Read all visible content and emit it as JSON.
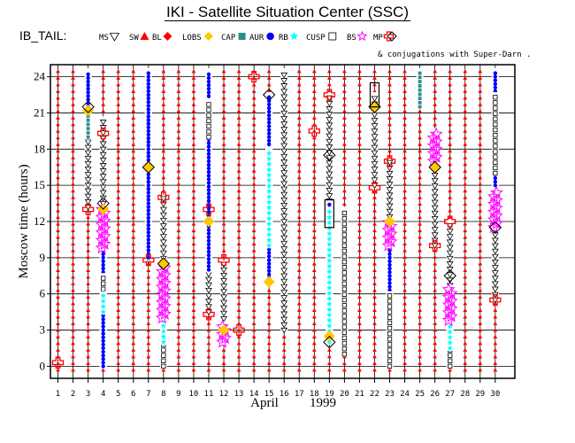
{
  "header": {
    "title": "IKI - Satellite Situation Center (SSC)"
  },
  "legend": {
    "prefix": "IB_TAIL:",
    "items": [
      {
        "label": "MS",
        "shape": "tri-down",
        "color": "#000000"
      },
      {
        "label": "SW",
        "shape": "tri-up",
        "color": "#ff0000"
      },
      {
        "label": "BL",
        "shape": "diamond-fill",
        "color": "#ff0000"
      },
      {
        "label": "LOBS",
        "shape": "diamond-fill",
        "color": "#ffc800"
      },
      {
        "label": "CAP",
        "shape": "square-fill",
        "color": "#2e8b8b"
      },
      {
        "label": "AUR",
        "shape": "circle-fill",
        "color": "#0000ff"
      },
      {
        "label": "RB",
        "shape": "star-fill",
        "color": "#00ffff"
      },
      {
        "label": "CUSP",
        "shape": "square-open",
        "color": "#000000"
      },
      {
        "label": "BS",
        "shape": "star-open",
        "color": "#ff00ff"
      },
      {
        "label": "MP",
        "shape": "cross-open",
        "color": "#ff0000"
      },
      {
        "label": "",
        "shape": "diamond-open",
        "color": "#000000"
      }
    ],
    "conjugation_note": "& conjugations with Super-Darn ."
  },
  "chart_data": {
    "type": "scatter",
    "title": "IKI - Satellite Situation Center (SSC)",
    "xlabel": "April",
    "xlabel_year": "1999",
    "ylabel": "Moscow time (hours)",
    "xlim": [
      0.5,
      31.3
    ],
    "ylim": [
      -1,
      25
    ],
    "x_ticks": [
      1,
      2,
      3,
      4,
      5,
      6,
      7,
      8,
      9,
      10,
      11,
      12,
      13,
      14,
      15,
      16,
      17,
      18,
      19,
      20,
      21,
      22,
      23,
      24,
      25,
      26,
      27,
      28,
      29,
      30
    ],
    "y_ticks": [
      0,
      3,
      6,
      9,
      12,
      15,
      18,
      21,
      24
    ],
    "day_background": {
      "category": "SW",
      "days": [
        1,
        2,
        3,
        4,
        5,
        6,
        7,
        8,
        9,
        10,
        11,
        12,
        13,
        14,
        15,
        16,
        17,
        18,
        19,
        20,
        21,
        22,
        23,
        24,
        25,
        26,
        27,
        28,
        29,
        30
      ]
    },
    "segments": [
      {
        "day": 3,
        "category": "AUR",
        "from": 21.5,
        "to": 24.5
      },
      {
        "day": 3,
        "category": "MS",
        "from": 13.2,
        "to": 21.2
      },
      {
        "day": 3,
        "category": "CAP",
        "from": 19.0,
        "to": 23.5
      },
      {
        "day": 4,
        "category": "MS",
        "from": 13.5,
        "to": 20.5
      },
      {
        "day": 4,
        "category": "BS",
        "from": 9.8,
        "to": 13.2
      },
      {
        "day": 4,
        "category": "AUR",
        "from": 0.0,
        "to": 9.8
      },
      {
        "day": 4,
        "category": "CAP",
        "from": 0.0,
        "to": 4.5
      },
      {
        "day": 4,
        "category": "CUSP",
        "from": 5.5,
        "to": 7.5
      },
      {
        "day": 4,
        "category": "RB",
        "from": 4.5,
        "to": 6.0
      },
      {
        "day": 7,
        "category": "AUR",
        "from": 9.0,
        "to": 24.5
      },
      {
        "day": 7,
        "category": "CAP",
        "from": 19.0,
        "to": 24.5
      },
      {
        "day": 7,
        "category": "MS",
        "from": 8.8,
        "to": 16.5
      },
      {
        "day": 8,
        "category": "MS",
        "from": 8.5,
        "to": 14.0
      },
      {
        "day": 8,
        "category": "BS",
        "from": 4.0,
        "to": 8.3
      },
      {
        "day": 8,
        "category": "RB",
        "from": 2.0,
        "to": 4.0
      },
      {
        "day": 8,
        "category": "CUSP",
        "from": 0.0,
        "to": 2.5
      },
      {
        "day": 11,
        "category": "AUR",
        "from": 8.0,
        "to": 24.5
      },
      {
        "day": 11,
        "category": "CAP",
        "from": 15.0,
        "to": 22.0
      },
      {
        "day": 11,
        "category": "CUSP",
        "from": 19.0,
        "to": 22.0
      },
      {
        "day": 11,
        "category": "MS",
        "from": 4.5,
        "to": 12.8
      },
      {
        "day": 12,
        "category": "MS",
        "from": 3.5,
        "to": 8.5
      },
      {
        "day": 12,
        "category": "BS",
        "from": 2.0,
        "to": 3.5
      },
      {
        "day": 15,
        "category": "MS",
        "from": 6.8,
        "to": 22.5
      },
      {
        "day": 15,
        "category": "AUR",
        "from": 7.0,
        "to": 22.5
      },
      {
        "day": 15,
        "category": "CAP",
        "from": 7.0,
        "to": 20.0
      },
      {
        "day": 15,
        "category": "RB",
        "from": 10.0,
        "to": 18.0
      },
      {
        "day": 16,
        "category": "MS",
        "from": 3.0,
        "to": 24.5
      },
      {
        "day": 19,
        "category": "MS",
        "from": 2.0,
        "to": 22.5
      },
      {
        "day": 19,
        "category": "AUR",
        "from": 2.0,
        "to": 13.5
      },
      {
        "day": 19,
        "category": "CAP",
        "from": 2.0,
        "to": 13.5
      },
      {
        "day": 19,
        "category": "RB",
        "from": 2.0,
        "to": 13.0
      },
      {
        "day": 20,
        "category": "CUSP",
        "from": 1.0,
        "to": 13.0
      },
      {
        "day": 22,
        "category": "MS",
        "from": 15.0,
        "to": 22.5
      },
      {
        "day": 23,
        "category": "MS",
        "from": 11.5,
        "to": 17.0
      },
      {
        "day": 23,
        "category": "BS",
        "from": 10.0,
        "to": 12.0
      },
      {
        "day": 23,
        "category": "AUR",
        "from": 0.0,
        "to": 12.0
      },
      {
        "day": 23,
        "category": "CUSP",
        "from": 0.0,
        "to": 6.0
      },
      {
        "day": 25,
        "category": "CAP",
        "from": 21.5,
        "to": 24.5
      },
      {
        "day": 26,
        "category": "BS",
        "from": 17.0,
        "to": 19.5
      },
      {
        "day": 26,
        "category": "MS",
        "from": 10.0,
        "to": 17.0
      },
      {
        "day": 27,
        "category": "MS",
        "from": 4.0,
        "to": 12.0
      },
      {
        "day": 27,
        "category": "BS",
        "from": 3.8,
        "to": 6.5
      },
      {
        "day": 27,
        "category": "RB",
        "from": 1.5,
        "to": 4.0
      },
      {
        "day": 27,
        "category": "CUSP",
        "from": 0.0,
        "to": 3.0
      },
      {
        "day": 30,
        "category": "AUR",
        "from": 15.0,
        "to": 24.5
      },
      {
        "day": 30,
        "category": "CUSP",
        "from": 16.0,
        "to": 22.5
      },
      {
        "day": 30,
        "category": "BS",
        "from": 11.5,
        "to": 14.5
      },
      {
        "day": 30,
        "category": "MS",
        "from": 5.5,
        "to": 11.5
      }
    ],
    "mp_crossings": [
      {
        "day": 1,
        "hour": 0.3
      },
      {
        "day": 3,
        "hour": 13.0
      },
      {
        "day": 4,
        "hour": 19.3
      },
      {
        "day": 7,
        "hour": 8.8
      },
      {
        "day": 8,
        "hour": 14.0
      },
      {
        "day": 11,
        "hour": 4.3
      },
      {
        "day": 11,
        "hour": 13.0
      },
      {
        "day": 12,
        "hour": 8.8
      },
      {
        "day": 13,
        "hour": 3.0
      },
      {
        "day": 14,
        "hour": 24.0
      },
      {
        "day": 18,
        "hour": 19.5
      },
      {
        "day": 19,
        "hour": 22.5
      },
      {
        "day": 22,
        "hour": 14.8
      },
      {
        "day": 23,
        "hour": 17.0
      },
      {
        "day": 26,
        "hour": 10.0
      },
      {
        "day": 27,
        "hour": 12.0
      },
      {
        "day": 30,
        "hour": 5.5
      }
    ],
    "lobs_points": [
      {
        "day": 3,
        "hour": 21.2
      },
      {
        "day": 4,
        "hour": 13.0
      },
      {
        "day": 7,
        "hour": 16.5
      },
      {
        "day": 8,
        "hour": 8.5
      },
      {
        "day": 11,
        "hour": 12.0
      },
      {
        "day": 12,
        "hour": 3.0
      },
      {
        "day": 15,
        "hour": 7.0
      },
      {
        "day": 19,
        "hour": 2.5
      },
      {
        "day": 22,
        "hour": 21.5
      },
      {
        "day": 23,
        "hour": 12.0
      },
      {
        "day": 26,
        "hour": 16.5
      }
    ],
    "conjugations": [
      {
        "day": 3,
        "hour": 21.5
      },
      {
        "day": 4,
        "hour": 13.5
      },
      {
        "day": 7,
        "hour": 16.5
      },
      {
        "day": 8,
        "hour": 8.5
      },
      {
        "day": 15,
        "hour": 22.5
      },
      {
        "day": 19,
        "hour": 17.5
      },
      {
        "day": 19,
        "hour": 2.0
      },
      {
        "day": 22,
        "hour": 21.5
      },
      {
        "day": 26,
        "hour": 16.5
      },
      {
        "day": 27,
        "hour": 7.5
      },
      {
        "day": 30,
        "hour": 11.5
      }
    ],
    "boxes": [
      {
        "day": 19,
        "from": 11.5,
        "to": 13.8
      },
      {
        "day": 22,
        "from": 21.5,
        "to": 23.5
      }
    ]
  }
}
